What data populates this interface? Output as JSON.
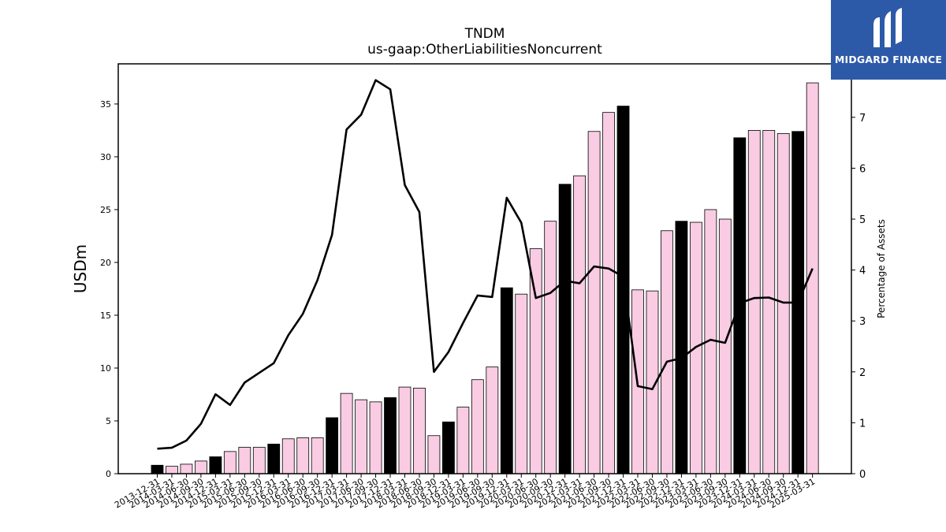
{
  "chart_data": {
    "type": "bar",
    "title": "TNDM",
    "subtitle": "us-gaap:OtherLiabilitiesNoncurrent",
    "ylabel": "USDm",
    "y2label": "Percentage of Assets",
    "ylim": [
      0,
      38.8
    ],
    "y2lim": [
      0,
      8.05
    ],
    "yticks": [
      0,
      5,
      10,
      15,
      20,
      25,
      30,
      35
    ],
    "y2ticks": [
      0,
      1,
      2,
      3,
      4,
      5,
      6,
      7
    ],
    "grid": false,
    "categories": [
      "2013-12-31",
      "2014-03-31",
      "2014-06-30",
      "2014-09-30",
      "2014-12-31",
      "2015-03-31",
      "2015-06-30",
      "2015-09-30",
      "2015-12-31",
      "2016-03-31",
      "2016-06-30",
      "2016-09-30",
      "2016-12-31",
      "2017-03-31",
      "2017-06-30",
      "2017-09-30",
      "2017-12-31",
      "2018-03-31",
      "2018-06-30",
      "2018-09-30",
      "2018-12-31",
      "2019-03-31",
      "2019-06-30",
      "2019-09-30",
      "2019-12-31",
      "2020-03-31",
      "2020-06-30",
      "2020-09-30",
      "2020-12-31",
      "2021-03-31",
      "2021-06-30",
      "2021-09-30",
      "2021-12-31",
      "2022-03-31",
      "2022-06-30",
      "2022-09-30",
      "2022-12-31",
      "2023-03-31",
      "2023-06-30",
      "2023-09-30",
      "2023-12-31",
      "2024-03-31",
      "2024-06-30",
      "2024-09-30",
      "2024-12-31",
      "2025-03-31"
    ],
    "series": [
      {
        "kind": "bar",
        "values": [
          0.8,
          0.7,
          0.9,
          1.2,
          1.6,
          2.1,
          2.5,
          2.5,
          2.8,
          3.3,
          3.4,
          3.4,
          5.3,
          7.6,
          7.0,
          6.8,
          7.2,
          8.2,
          8.1,
          3.6,
          4.9,
          6.3,
          8.9,
          10.1,
          17.6,
          17.0,
          21.3,
          23.9,
          27.4,
          28.2,
          32.4,
          34.2,
          34.8,
          17.4,
          17.3,
          23.0,
          23.9,
          23.8,
          25.0,
          24.1,
          31.8,
          32.5,
          32.5,
          32.2,
          32.4,
          37.0
        ],
        "year_end_color": "#000000",
        "quarter_color": "#f9cce3"
      },
      {
        "kind": "line",
        "axis": "right",
        "color": "#000000",
        "values": [
          0.49,
          0.51,
          0.65,
          0.98,
          1.56,
          1.35,
          1.79,
          1.98,
          2.17,
          2.72,
          3.14,
          3.8,
          4.69,
          6.76,
          7.05,
          7.73,
          7.55,
          5.67,
          5.14,
          2.0,
          2.39,
          2.96,
          3.5,
          3.47,
          5.42,
          4.93,
          3.45,
          3.55,
          3.79,
          3.74,
          4.07,
          4.03,
          3.87,
          1.72,
          1.66,
          2.2,
          2.27,
          2.49,
          2.63,
          2.57,
          3.35,
          3.45,
          3.46,
          3.36,
          3.36,
          4.03
        ]
      }
    ]
  },
  "logo": {
    "text": "MIDGARD FINANCE",
    "bg_color": "#2d5aa8",
    "icon": "midgard-logo-icon"
  }
}
